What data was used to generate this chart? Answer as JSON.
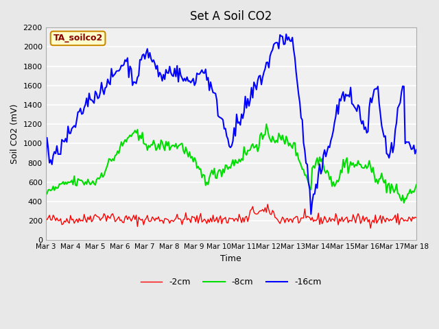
{
  "title": "Set A Soil CO2",
  "xlabel": "Time",
  "ylabel": "Soil CO2 (mV)",
  "ylim": [
    0,
    2200
  ],
  "yticks": [
    0,
    200,
    400,
    600,
    800,
    1000,
    1200,
    1400,
    1600,
    1800,
    2000,
    2200
  ],
  "xtick_labels": [
    "Mar 3",
    "Mar 4",
    "Mar 5",
    "Mar 6",
    "Mar 7",
    "Mar 8",
    "Mar 9",
    "Mar 10",
    "Mar 11",
    "Mar 12",
    "Mar 13",
    "Mar 14",
    "Mar 15",
    "Mar 16",
    "Mar 17",
    "Mar 18"
  ],
  "legend_labels": [
    "-2cm",
    "-8cm",
    "-16cm"
  ],
  "line_colors": [
    "#ff0000",
    "#00dd00",
    "#0000ff"
  ],
  "fig_bg": "#e8e8e8",
  "ax_bg": "#f0f0f0",
  "label_box_fc": "#ffffcc",
  "label_box_ec": "#cc8800",
  "label_text_color": "#880000",
  "label_text": "TA_soilco2",
  "n_days": 15,
  "n_points": 300,
  "seed": 42
}
